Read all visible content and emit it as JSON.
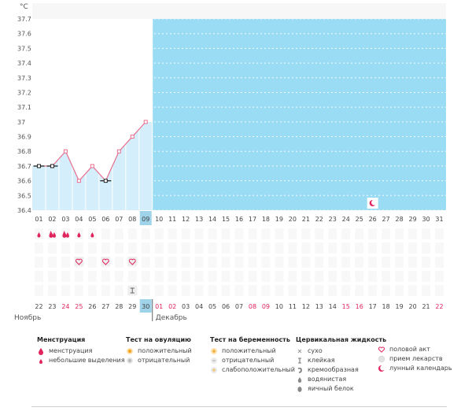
{
  "chart_data": {
    "type": "line",
    "ylabel": "°C",
    "ylim": [
      36.4,
      37.75
    ],
    "y_ticks": [
      "37.7",
      "37.6",
      "37.5",
      "37.4",
      "37.3",
      "37.2",
      "37.1",
      "37",
      "36.9",
      "36.8",
      "36.7",
      "36.6",
      "36.5",
      "36.4"
    ],
    "cycle_days": [
      "01",
      "02",
      "03",
      "04",
      "05",
      "06",
      "07",
      "08",
      "09",
      "10",
      "11",
      "12",
      "13",
      "14",
      "15",
      "16",
      "17",
      "18",
      "19",
      "20",
      "21",
      "22",
      "23",
      "24",
      "25",
      "26",
      "27",
      "28",
      "29",
      "30",
      "31"
    ],
    "current_day_index": 8,
    "series": [
      {
        "x": [
          "01",
          "02",
          "03",
          "04",
          "05",
          "06",
          "07",
          "08",
          "09"
        ],
        "values": [
          36.7,
          36.7,
          36.8,
          36.6,
          36.7,
          36.6,
          36.8,
          36.9,
          37.0
        ]
      }
    ],
    "calendar_dates": [
      "22",
      "23",
      "24",
      "25",
      "26",
      "27",
      "28",
      "29",
      "30",
      "01",
      "02",
      "03",
      "04",
      "05",
      "06",
      "07",
      "08",
      "09",
      "10",
      "11",
      "12",
      "13",
      "14",
      "15",
      "16",
      "17",
      "18",
      "19",
      "20",
      "21",
      "22"
    ],
    "calendar_weekend": [
      false,
      false,
      true,
      true,
      false,
      false,
      false,
      false,
      false,
      true,
      true,
      false,
      false,
      false,
      false,
      false,
      true,
      true,
      false,
      false,
      false,
      false,
      false,
      true,
      true,
      false,
      false,
      false,
      false,
      false,
      true
    ],
    "month_labels": [
      {
        "label": "Ноябрь",
        "start_index": 0
      },
      {
        "label": "Декабрь",
        "start_index": 9
      }
    ],
    "menstruation_marks": [
      {
        "day": "01",
        "type": "light"
      },
      {
        "day": "02",
        "type": "heavy"
      },
      {
        "day": "03",
        "type": "heavy"
      },
      {
        "day": "04",
        "type": "light"
      },
      {
        "day": "05",
        "type": "light"
      }
    ],
    "intercourse_days": [
      "04",
      "06",
      "08"
    ],
    "cervical_fluid_days": [
      "08"
    ],
    "moon_days": [
      "26"
    ]
  },
  "legend": {
    "menstruation": {
      "title": "Менструация",
      "items": [
        "менструация",
        "небольшие выделения"
      ]
    },
    "ovulation_test": {
      "title": "Тест на овуляцию",
      "items": [
        "положительный",
        "отрицательный"
      ]
    },
    "pregnancy_test": {
      "title": "Тест на беременность",
      "items": [
        "положительный",
        "отрицательный",
        "слабоположительный"
      ]
    },
    "cervical_fluid": {
      "title": "Цервикальная жидкость",
      "items": [
        "сухо",
        "клейкая",
        "кремообразная",
        "водянистая",
        "яичный белок"
      ]
    },
    "other": {
      "items": [
        "половой акт",
        "прием лекарств",
        "лунный календарь"
      ]
    }
  },
  "colors": {
    "area_after": "#99dcf3",
    "area_before": "#d4effb",
    "line": "#e8708f",
    "accent": "#e0245e",
    "current_day": "#9fd3ea"
  }
}
